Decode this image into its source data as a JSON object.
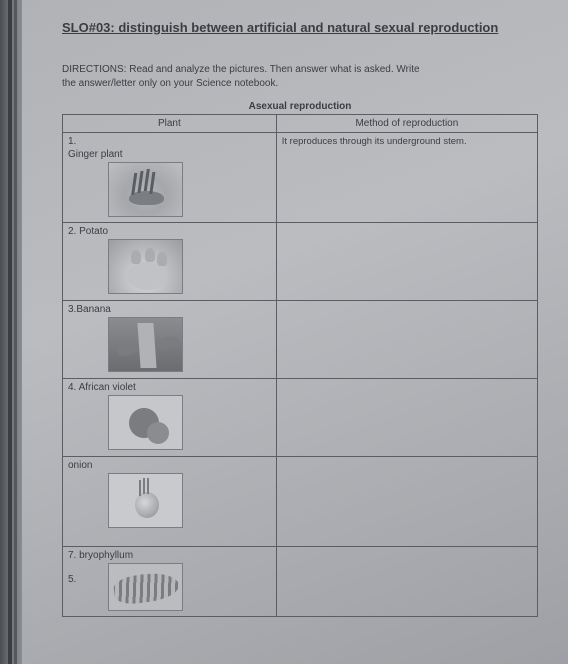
{
  "title": "SLO#03: distinguish between artificial and natural sexual reproduction",
  "directions_l1": "DIRECTIONS: Read and analyze the pictures. Then answer what is asked. Write",
  "directions_l2": "the answer/letter only on your Science notebook.",
  "table_caption": "Asexual reproduction",
  "headers": {
    "plant": "Plant",
    "method": "Method of reproduction"
  },
  "rows": [
    {
      "num": "1.",
      "name": "Ginger plant",
      "method": "It reproduces through its underground stem."
    },
    {
      "num": "2.",
      "name": "Potato",
      "method": ""
    },
    {
      "num": "3.",
      "name": "Banana",
      "method": ""
    },
    {
      "num": "4.",
      "name": "African violet",
      "method": ""
    },
    {
      "num_extra": "5.",
      "name": "onion",
      "method": ""
    },
    {
      "num": "7.",
      "name": "bryophyllum",
      "method": ""
    }
  ],
  "colors": {
    "page_bg": "#b5b7ba",
    "text": "#3a3d42",
    "border": "#5a5d62"
  }
}
